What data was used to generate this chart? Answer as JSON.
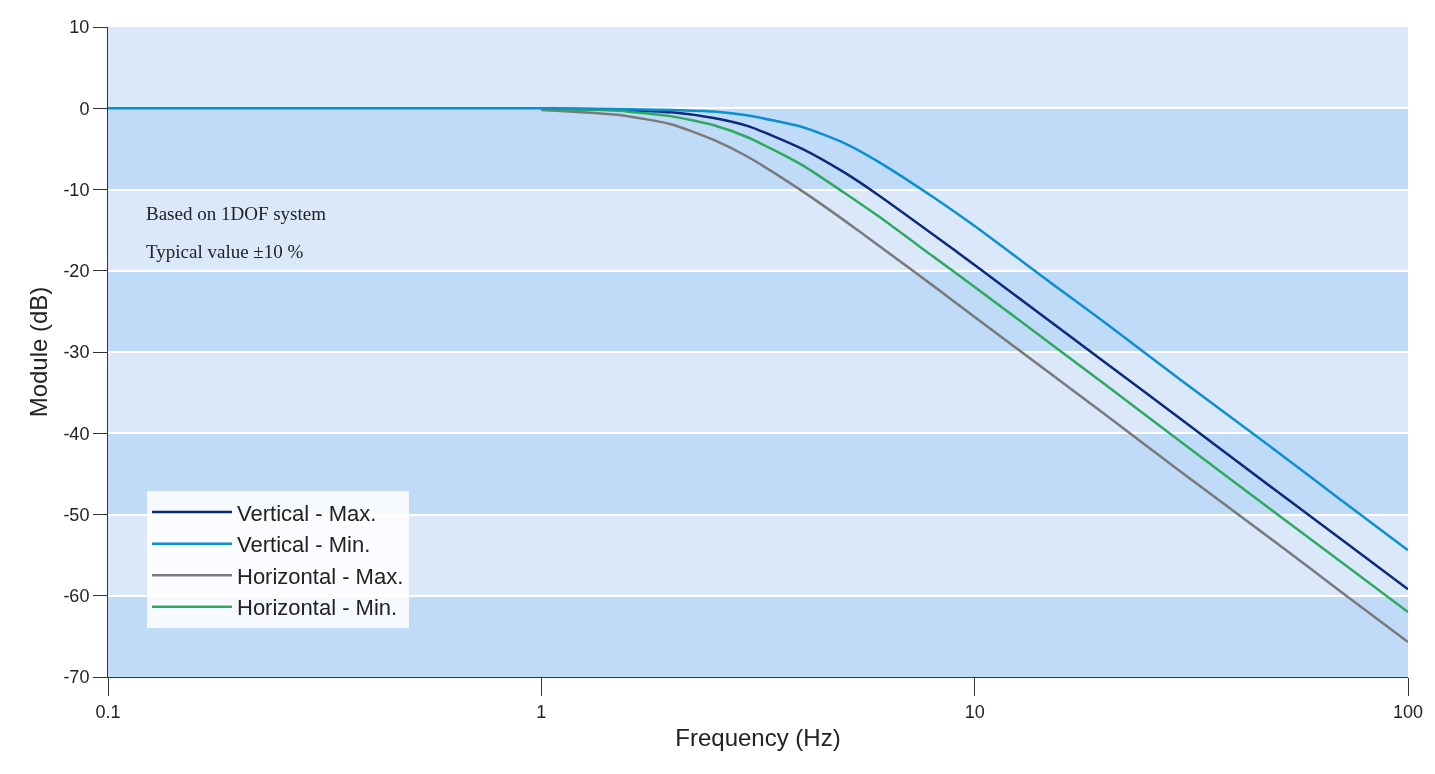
{
  "chart_data": {
    "type": "line",
    "xlabel": "Frequency (Hz)",
    "ylabel": "Module (dB)",
    "x": [
      0.1,
      0.3,
      0.5,
      0.7,
      1,
      1.5,
      2,
      2.5,
      3,
      4,
      5,
      6,
      8,
      10,
      15,
      20,
      30,
      50,
      70,
      100
    ],
    "series": [
      {
        "name": "Vertical - Max.",
        "color": "#0b2a7a",
        "values": [
          null,
          null,
          null,
          null,
          0,
          -0.2,
          -0.5,
          -1.2,
          -2.2,
          -5.0,
          -7.9,
          -10.7,
          -15.5,
          -19.3,
          -26.3,
          -31.3,
          -38.3,
          -47.2,
          -53.0,
          -59.2
        ]
      },
      {
        "name": "Vertical - Min.",
        "color": "#0a8fd0",
        "values": [
          0,
          0,
          0,
          0,
          0,
          -0.1,
          -0.2,
          -0.4,
          -0.9,
          -2.3,
          -4.3,
          -6.6,
          -10.9,
          -14.5,
          -21.5,
          -26.4,
          -33.5,
          -42.3,
          -48.2,
          -54.4
        ]
      },
      {
        "name": "Horizontal - Max.",
        "color": "#7a7a7a",
        "values": [
          null,
          null,
          null,
          null,
          -0.2,
          -0.8,
          -2.0,
          -3.9,
          -6.0,
          -10.2,
          -13.8,
          -16.9,
          -21.8,
          -25.7,
          -32.7,
          -37.7,
          -44.8,
          -53.6,
          -59.5,
          -65.7
        ]
      },
      {
        "name": "Horizontal - Min.",
        "color": "#2eaa60",
        "values": [
          null,
          null,
          null,
          null,
          -0.1,
          -0.3,
          -1.0,
          -2.1,
          -3.6,
          -7.0,
          -10.4,
          -13.3,
          -18.2,
          -22.0,
          -29.0,
          -34.0,
          -41.1,
          -50.0,
          -55.8,
          -62.0
        ]
      }
    ],
    "log": "x",
    "xlim": [
      0.1,
      100
    ],
    "xticks": [
      0.1,
      1,
      10,
      100
    ],
    "ylim": [
      -70,
      10
    ],
    "yticks": [
      -70,
      -60,
      -50,
      -40,
      -30,
      -20,
      -10,
      0,
      10
    ],
    "bands": [
      {
        "axis": "y",
        "from": 0,
        "to": 10,
        "color": "#dae8fa"
      },
      {
        "axis": "y",
        "from": -10,
        "to": 0,
        "color": "#c0dbf7"
      },
      {
        "axis": "y",
        "from": -20,
        "to": -10,
        "color": "#dae8fa"
      },
      {
        "axis": "y",
        "from": -30,
        "to": -20,
        "color": "#c0dbf7"
      },
      {
        "axis": "y",
        "from": -40,
        "to": -30,
        "color": "#dae8fa"
      },
      {
        "axis": "y",
        "from": -50,
        "to": -40,
        "color": "#c0dbf7"
      },
      {
        "axis": "y",
        "from": -60,
        "to": -50,
        "color": "#dae8fa"
      },
      {
        "axis": "y",
        "from": -70,
        "to": -60,
        "color": "#c0dbf7"
      }
    ],
    "grid": "y",
    "legend": "bottom left",
    "line_style": "solid",
    "marker": "none",
    "annotations": [
      "Based on 1DOF system",
      "Typical value ±10 %"
    ]
  }
}
